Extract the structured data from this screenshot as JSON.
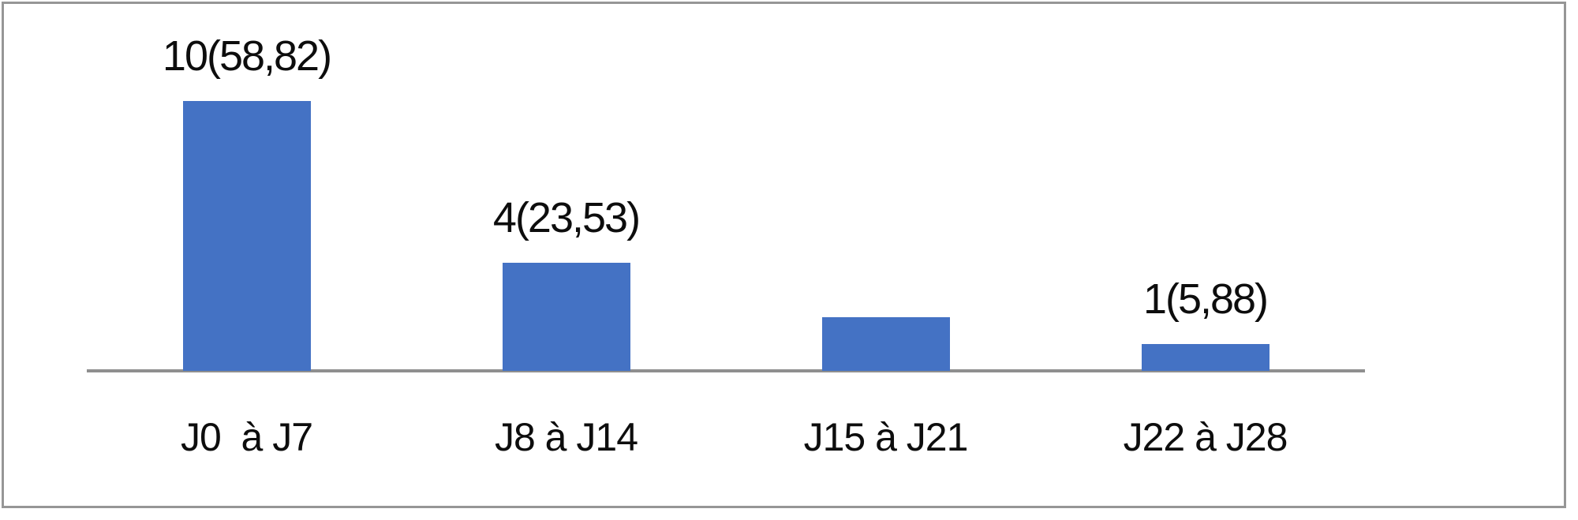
{
  "chart_data": {
    "type": "bar",
    "categories": [
      "J0  à J7",
      "J8 à J14",
      "J15 à J21",
      "J22 à J28"
    ],
    "values": [
      10,
      4,
      2,
      1
    ],
    "data_labels": [
      "10(58,82)",
      "4(23,53)",
      "",
      "1(5,88)"
    ],
    "title": "",
    "xlabel": "",
    "ylabel": "",
    "ylim": [
      0,
      10.5
    ],
    "grid": false,
    "y_axis_visible": false,
    "legend": "none",
    "data_label_position": "above-bar",
    "note_visible_content": "third bar has no data label shown",
    "colors": {
      "bar": "#4472C4",
      "axis_line": "#8F8F8F",
      "frame_border": "#969696",
      "text": "#0D0D0D",
      "background": "#FFFFFF"
    }
  }
}
